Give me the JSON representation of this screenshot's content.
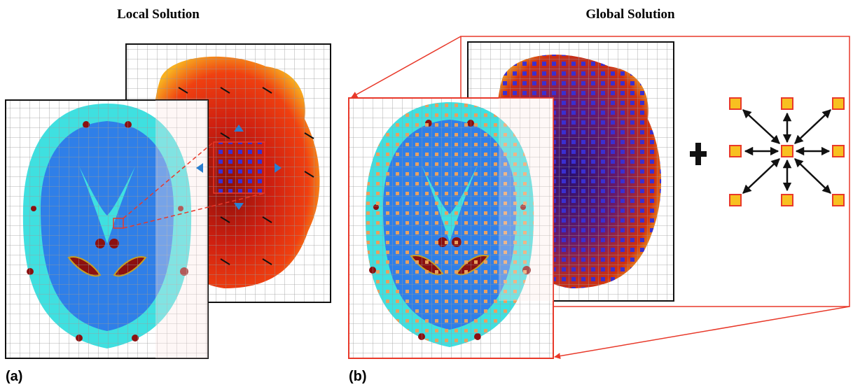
{
  "panels": [
    {
      "title": "Local Solution",
      "label": "(a)"
    },
    {
      "title": "Global Solution",
      "label": "(b)"
    }
  ]
}
